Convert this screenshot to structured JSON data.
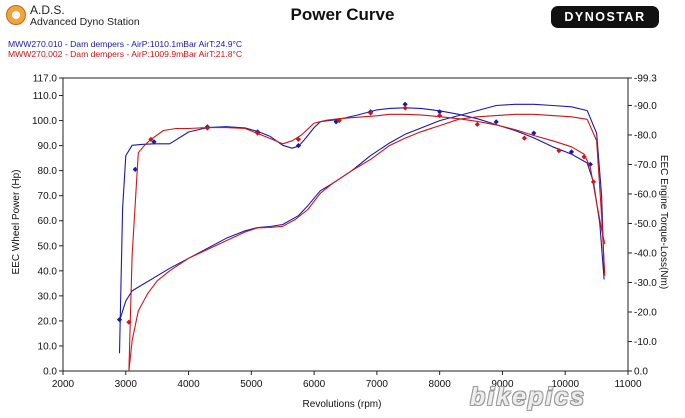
{
  "header": {
    "brand": "A.D.S.",
    "subtitle": "Advanced Dyno Station",
    "title": "Power Curve",
    "badge": "DYNOSTAR"
  },
  "runs": [
    {
      "label": "MWW270.010 - Dam dempers - AirP:1010.1mBar AirT:24.9°C",
      "color": "#1a1aa8"
    },
    {
      "label": "MWW270.002 - Dam dempers - AirP:1009.9mBar AirT:21.8°C",
      "color": "#c81818"
    }
  ],
  "watermark": "bikepics",
  "chart_data": {
    "type": "line",
    "xlabel": "Revolutions (rpm)",
    "ylabel": "EEC Wheel Power (Hp)",
    "y2label": "EEC Engine Torque-Loss(Nm)",
    "xlim": [
      2000,
      11000
    ],
    "ylim": [
      0,
      117
    ],
    "y2lim": [
      0,
      99.3
    ],
    "x_ticks": [
      2000,
      3000,
      4000,
      5000,
      6000,
      7000,
      8000,
      9000,
      10000,
      11000
    ],
    "y_ticks": [
      0.0,
      10.0,
      20.0,
      30.0,
      40.0,
      50.0,
      60.0,
      70.0,
      80.0,
      90.0,
      100.0,
      110.0,
      117.0
    ],
    "y2_ticks": [
      0.0,
      10.0,
      20.0,
      30.0,
      40.0,
      50.0,
      60.0,
      70.0,
      80.0,
      90.0,
      99.3
    ],
    "y_tick_labels": [
      "0.0",
      "10.0",
      "20.0",
      "30.0",
      "40.0",
      "50.0",
      "60.0",
      "70.0",
      "80.0",
      "90.0",
      "100.0",
      "110.0",
      "117.0"
    ],
    "y2_tick_labels": [
      "0.0",
      "-10.0",
      "-20.0",
      "-30.0",
      "-40.0",
      "-50.0",
      "-60.0",
      "-70.0",
      "-80.0",
      "-90.0",
      "-99.3"
    ],
    "grid": false,
    "series": [
      {
        "name": "MWW270.010 - Dam dempers - AirP:1010.1mBar AirT:24.9°C",
        "measure": "power",
        "axis": "left",
        "color": "#1a1aa8",
        "x": [
          2900,
          3000,
          3100,
          3200,
          3300,
          3500,
          3700,
          4000,
          4300,
          4600,
          4900,
          5100,
          5300,
          5500,
          5750,
          5900,
          6100,
          6300,
          6600,
          6900,
          7200,
          7450,
          7700,
          8000,
          8300,
          8600,
          8900,
          9200,
          9500,
          9800,
          10100,
          10350,
          10500,
          10580,
          10620
        ],
        "y": [
          20,
          28,
          32,
          33.5,
          35,
          38,
          41,
          45,
          49,
          53,
          56,
          57.3,
          57.7,
          58.5,
          62,
          66,
          72,
          75,
          80,
          86,
          91,
          94.5,
          97,
          100,
          102,
          104,
          106,
          106.5,
          106.5,
          106,
          105.5,
          104,
          95,
          70,
          40
        ],
        "markers_x": [
          2900,
          3150,
          3450,
          4300,
          5100,
          5750,
          6350,
          6900,
          7450,
          8000,
          8900,
          9500,
          10100,
          10400
        ],
        "markers_y": [
          20.5,
          80.5,
          91.5,
          97.5,
          95.5,
          90,
          99.5,
          103.5,
          106.5,
          103.5,
          99.5,
          95,
          87.5,
          82.5
        ]
      },
      {
        "name": "MWW270.010 - Dam dempers - AirP:1010.1mBar AirT:24.9°C",
        "measure": "torque",
        "axis": "right",
        "color": "#1a1aa8",
        "x": [
          2900,
          2950,
          3000,
          3100,
          3250,
          3450,
          3700,
          4000,
          4300,
          4600,
          4900,
          5100,
          5300,
          5500,
          5650,
          5750,
          5850,
          6000,
          6100,
          6200,
          6400,
          6700,
          7000,
          7200,
          7450,
          7700,
          8000,
          8300,
          8600,
          8900,
          9200,
          9500,
          9800,
          10100,
          10350,
          10450,
          10550,
          10620
        ],
        "y": [
          -6,
          -55,
          -73,
          -76.5,
          -76.8,
          -77,
          -77,
          -81,
          -82.5,
          -82.8,
          -82.4,
          -81.2,
          -79.5,
          -76.5,
          -75.5,
          -76.2,
          -78.5,
          -82.5,
          -84.5,
          -84.8,
          -85.3,
          -86.8,
          -88.5,
          -89,
          -89.2,
          -89,
          -88.2,
          -87,
          -85.5,
          -83.5,
          -81.5,
          -79,
          -76,
          -73.5,
          -70.5,
          -64,
          -50,
          -31
        ],
        "markers_x": [],
        "markers_y": []
      },
      {
        "name": "MWW270.002 - Dam dempers - AirP:1009.9mBar AirT:21.8°C",
        "measure": "power",
        "axis": "left",
        "color": "#c81818",
        "x": [
          3050,
          3100,
          3200,
          3350,
          3500,
          3700,
          4000,
          4300,
          4600,
          4900,
          5100,
          5300,
          5500,
          5700,
          5900,
          6100,
          6300,
          6600,
          6900,
          7200,
          7450,
          7700,
          8000,
          8300,
          8600,
          8900,
          9200,
          9500,
          9800,
          10100,
          10350,
          10500,
          10580,
          10630
        ],
        "y": [
          0,
          12,
          24,
          31,
          36,
          40,
          45,
          48.5,
          52,
          55.5,
          57.2,
          57.3,
          57.8,
          60.5,
          64.5,
          71,
          75,
          80,
          84.5,
          90,
          93,
          95.5,
          98,
          100.5,
          101.5,
          102,
          102.5,
          102.5,
          102,
          101.5,
          100.5,
          92,
          62,
          38
        ],
        "markers_x": [
          3050,
          3400,
          4300,
          5100,
          5750,
          6400,
          6900,
          7450,
          8000,
          8600,
          9350,
          9900,
          10300,
          10450
        ],
        "markers_y": [
          19.5,
          92.5,
          97,
          95,
          92.5,
          100,
          103,
          105,
          102,
          98.5,
          93,
          88,
          85.5,
          75.5
        ]
      },
      {
        "name": "MWW270.002 - Dam dempers - AirP:1009.9mBar AirT:21.8°C",
        "measure": "torque",
        "axis": "right",
        "color": "#c81818",
        "x": [
          3050,
          3100,
          3200,
          3300,
          3400,
          3600,
          3800,
          4000,
          4300,
          4600,
          4900,
          5100,
          5300,
          5500,
          5650,
          5800,
          6000,
          6200,
          6400,
          6700,
          7000,
          7200,
          7450,
          7700,
          8000,
          8300,
          8600,
          8900,
          9200,
          9500,
          9800,
          10100,
          10300,
          10400,
          10500,
          10580,
          10630
        ],
        "y": [
          0,
          -39,
          -74,
          -76.5,
          -78.5,
          -81.5,
          -82.2,
          -82.2,
          -82.5,
          -82.5,
          -82.2,
          -80.5,
          -78.8,
          -77,
          -78,
          -80,
          -84,
          -85,
          -85.5,
          -86,
          -86.5,
          -87,
          -87,
          -86.8,
          -86.2,
          -85.5,
          -84.6,
          -83.4,
          -81.8,
          -79.8,
          -78,
          -76,
          -73.5,
          -69,
          -57,
          -48,
          -43
        ],
        "markers_x": [],
        "markers_y": []
      }
    ]
  }
}
